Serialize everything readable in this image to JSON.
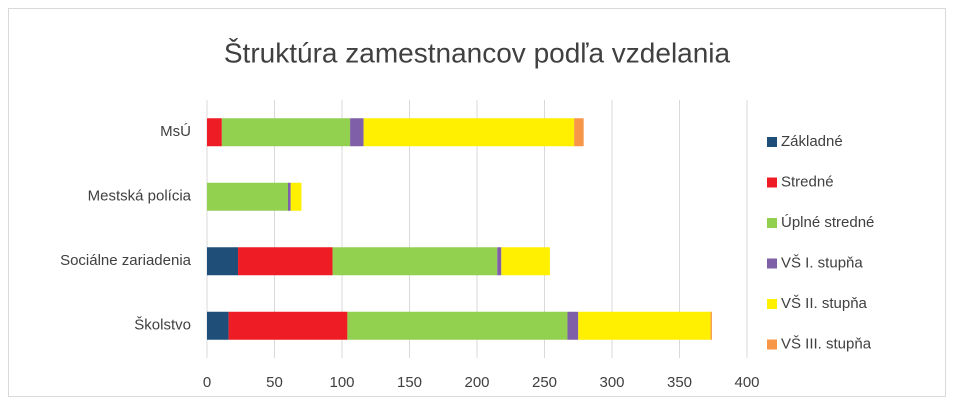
{
  "chart_data": {
    "type": "stacked-bar-horizontal",
    "title": "Štruktúra zamestnancov podľa vzdelania",
    "categories": [
      "MsÚ",
      "Mestská polícia",
      "Sociálne zariadenia",
      "Školstvo"
    ],
    "series": [
      {
        "name": "Základné",
        "color": "#1f4e79",
        "values": [
          0,
          0,
          23,
          16
        ]
      },
      {
        "name": "Stredné",
        "color": "#ee1c25",
        "values": [
          11,
          0,
          70,
          88
        ]
      },
      {
        "name": "Úplné stredné",
        "color": "#92d050",
        "values": [
          95,
          60,
          122,
          163
        ]
      },
      {
        "name": "VŠ I. stupňa",
        "color": "#7f5fa8",
        "values": [
          10,
          2,
          3,
          8
        ]
      },
      {
        "name": "VŠ II. stupňa",
        "color": "#ffef00",
        "values": [
          156,
          8,
          36,
          98
        ]
      },
      {
        "name": "VŠ III. stupňa",
        "color": "#f79646",
        "values": [
          7,
          0,
          0,
          1
        ]
      }
    ],
    "xlim": [
      0,
      400
    ],
    "xticks": [
      0,
      50,
      100,
      150,
      200,
      250,
      300,
      350,
      400
    ],
    "grid": true,
    "legend": "right"
  }
}
